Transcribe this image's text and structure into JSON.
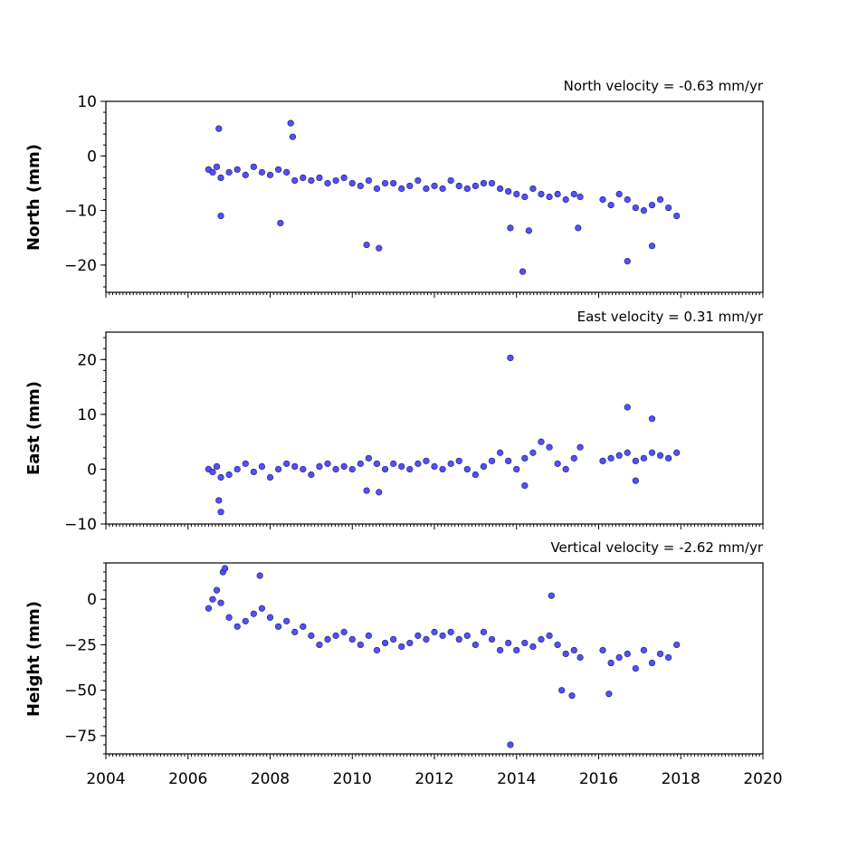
{
  "figure": {
    "background": "#ffffff",
    "marker_color": "#5050ff",
    "marker_edge": "#1a1a5a"
  },
  "chart_data": [
    {
      "type": "scatter",
      "title": "North velocity = -0.63 mm/yr",
      "xlabel": "",
      "ylabel": "North (mm)",
      "xlim": [
        2004,
        2020
      ],
      "ylim": [
        -25,
        10
      ],
      "yticks": [
        10,
        0,
        -10,
        -20
      ],
      "ytick_labels": [
        "10",
        "0",
        "−10",
        "−20"
      ],
      "xticks": [
        2004,
        2006,
        2008,
        2010,
        2012,
        2014,
        2016,
        2018,
        2020
      ],
      "xtick_labels": [],
      "series": [
        {
          "x": [
            2006.5,
            2006.6,
            2006.7,
            2006.8,
            2007.0,
            2007.2,
            2007.4,
            2007.6,
            2007.8,
            2008.0,
            2008.2,
            2008.4,
            2008.6,
            2008.8,
            2009.0,
            2009.2,
            2009.4,
            2009.6,
            2009.8,
            2010.0,
            2010.2,
            2010.4,
            2010.6,
            2010.8,
            2011.0,
            2011.2,
            2011.4,
            2011.6,
            2011.8,
            2012.0,
            2012.2,
            2012.4,
            2012.6,
            2012.8,
            2013.0,
            2013.2,
            2013.4,
            2013.6,
            2013.8,
            2014.0,
            2014.2,
            2014.4,
            2014.6,
            2014.8,
            2015.0,
            2015.2,
            2015.4,
            2015.55,
            2016.1,
            2016.3,
            2016.5,
            2016.7,
            2016.9,
            2017.1,
            2017.3,
            2017.5,
            2017.7,
            2017.9,
            2006.75,
            2006.8,
            2008.5,
            2008.55,
            2008.25,
            2010.35,
            2010.65,
            2014.15,
            2013.85,
            2014.3,
            2016.7,
            2017.3,
            2015.5
          ],
          "y": [
            -2.5,
            -3,
            -2,
            -4,
            -3,
            -2.5,
            -3.5,
            -2,
            -3,
            -3.5,
            -2.5,
            -3,
            -4.5,
            -4,
            -4.5,
            -4,
            -5,
            -4.5,
            -4,
            -5,
            -5.5,
            -4.5,
            -6,
            -5,
            -5,
            -6,
            -5.5,
            -4.5,
            -6,
            -5.5,
            -6,
            -4.5,
            -5.5,
            -6,
            -5.5,
            -5,
            -5,
            -6,
            -6.5,
            -7,
            -7.5,
            -6,
            -7,
            -7.5,
            -7,
            -8,
            -7,
            -7.5,
            -8,
            -9,
            -7,
            -8,
            -9.5,
            -10,
            -9,
            -8,
            -9.5,
            -11,
            5,
            -11,
            6,
            3.5,
            -12.3,
            -16.3,
            -16.9,
            -21.2,
            -13.2,
            -13.7,
            -19.3,
            -16.5,
            -13.2
          ]
        }
      ]
    },
    {
      "type": "scatter",
      "title": "East velocity = 0.31 mm/yr",
      "xlabel": "",
      "ylabel": "East (mm)",
      "xlim": [
        2004,
        2020
      ],
      "ylim": [
        -10,
        25
      ],
      "yticks": [
        20,
        10,
        0,
        -10
      ],
      "ytick_labels": [
        "20",
        "10",
        "0",
        "−10"
      ],
      "xticks": [
        2004,
        2006,
        2008,
        2010,
        2012,
        2014,
        2016,
        2018,
        2020
      ],
      "xtick_labels": [],
      "series": [
        {
          "x": [
            2006.5,
            2006.6,
            2006.7,
            2006.8,
            2007.0,
            2007.2,
            2007.4,
            2007.6,
            2007.8,
            2008.0,
            2008.2,
            2008.4,
            2008.6,
            2008.8,
            2009.0,
            2009.2,
            2009.4,
            2009.6,
            2009.8,
            2010.0,
            2010.2,
            2010.4,
            2010.6,
            2010.8,
            2011.0,
            2011.2,
            2011.4,
            2011.6,
            2011.8,
            2012.0,
            2012.2,
            2012.4,
            2012.6,
            2012.8,
            2013.0,
            2013.2,
            2013.4,
            2013.6,
            2013.8,
            2014.0,
            2014.2,
            2014.4,
            2014.6,
            2014.8,
            2015.0,
            2015.2,
            2015.4,
            2015.55,
            2016.1,
            2016.3,
            2016.5,
            2016.7,
            2016.9,
            2017.1,
            2017.3,
            2017.5,
            2017.7,
            2017.9,
            2013.85,
            2016.7,
            2017.3,
            2006.8,
            2006.75,
            2010.35,
            2010.65,
            2014.2,
            2016.9
          ],
          "y": [
            0,
            -0.5,
            0.5,
            -1.5,
            -1,
            0,
            1,
            -0.5,
            0.5,
            -1.5,
            0,
            1,
            0.5,
            0,
            -1,
            0.5,
            1,
            0,
            0.5,
            0,
            1,
            2,
            1,
            0,
            1,
            0.5,
            0,
            1,
            1.5,
            0.5,
            0,
            1,
            1.5,
            0,
            -1,
            0.5,
            1.5,
            3,
            1.5,
            0,
            2,
            3,
            5,
            4,
            1,
            0,
            2,
            4,
            1.5,
            2,
            2.5,
            3,
            1.5,
            2,
            3,
            2.5,
            2,
            3,
            20.3,
            11.3,
            9.2,
            -7.8,
            -5.7,
            -3.9,
            -4.2,
            -3,
            -2.1
          ]
        }
      ]
    },
    {
      "type": "scatter",
      "title": "Vertical velocity = -2.62 mm/yr",
      "xlabel": "",
      "ylabel": "Height (mm)",
      "xlim": [
        2004,
        2020
      ],
      "ylim": [
        -85,
        20
      ],
      "yticks": [
        0,
        -25,
        -50,
        -75
      ],
      "ytick_labels": [
        "0",
        "−25",
        "−50",
        "−75"
      ],
      "xticks": [
        2004,
        2006,
        2008,
        2010,
        2012,
        2014,
        2016,
        2018,
        2020
      ],
      "xtick_labels": [
        "2004",
        "2006",
        "2008",
        "2010",
        "2012",
        "2014",
        "2016",
        "2018",
        "2020"
      ],
      "series": [
        {
          "x": [
            2006.5,
            2006.6,
            2006.7,
            2006.8,
            2007.0,
            2007.2,
            2007.4,
            2007.6,
            2007.8,
            2008.0,
            2008.2,
            2008.4,
            2008.6,
            2008.8,
            2009.0,
            2009.2,
            2009.4,
            2009.6,
            2009.8,
            2010.0,
            2010.2,
            2010.4,
            2010.6,
            2010.8,
            2011.0,
            2011.2,
            2011.4,
            2011.6,
            2011.8,
            2012.0,
            2012.2,
            2012.4,
            2012.6,
            2012.8,
            2013.0,
            2013.2,
            2013.4,
            2013.6,
            2013.8,
            2014.0,
            2014.2,
            2014.4,
            2014.6,
            2014.8,
            2015.0,
            2015.2,
            2015.4,
            2015.55,
            2016.1,
            2016.3,
            2016.5,
            2016.7,
            2016.9,
            2017.1,
            2017.3,
            2017.5,
            2017.7,
            2017.9,
            2006.85,
            2006.9,
            2007.75,
            2013.85,
            2014.85,
            2015.1,
            2015.35,
            2016.25
          ],
          "y": [
            -5,
            0,
            5,
            -2,
            -10,
            -15,
            -12,
            -8,
            -5,
            -10,
            -15,
            -12,
            -18,
            -15,
            -20,
            -25,
            -22,
            -20,
            -18,
            -22,
            -25,
            -20,
            -28,
            -24,
            -22,
            -26,
            -24,
            -20,
            -22,
            -18,
            -20,
            -18,
            -22,
            -20,
            -25,
            -18,
            -22,
            -28,
            -24,
            -28,
            -24,
            -26,
            -22,
            -20,
            -25,
            -30,
            -28,
            -32,
            -28,
            -35,
            -32,
            -30,
            -38,
            -28,
            -35,
            -30,
            -32,
            -25,
            15,
            17,
            13,
            -80,
            2,
            -50,
            -53,
            -52
          ]
        }
      ]
    }
  ]
}
